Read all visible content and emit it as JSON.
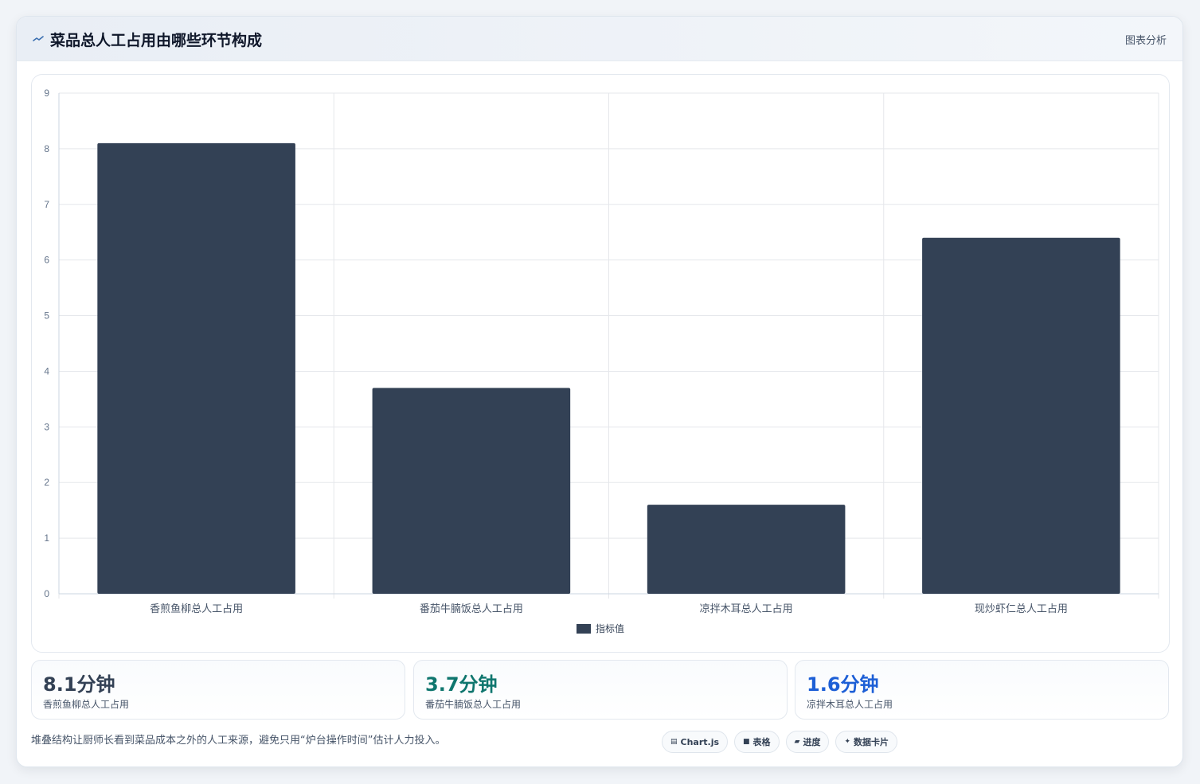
{
  "header": {
    "title": "菜品总人工占用由哪些环节构成",
    "link_label": "图表分析"
  },
  "chart_data": {
    "type": "bar",
    "categories": [
      "香煎鱼柳总人工占用",
      "番茄牛腩饭总人工占用",
      "凉拌木耳总人工占用",
      "现炒虾仁总人工占用"
    ],
    "series": [
      {
        "name": "指标值",
        "values": [
          8.1,
          3.7,
          1.6,
          6.4
        ],
        "color": "#334155"
      }
    ],
    "ylim": [
      0,
      9
    ],
    "yticks": [
      "0",
      "1",
      "2",
      "3",
      "4",
      "5",
      "6",
      "7",
      "8",
      "9"
    ],
    "grid": true,
    "legend_position": "bottom"
  },
  "stats": [
    {
      "value": "8.1分钟",
      "label": "香煎鱼柳总人工占用",
      "color": "#334155"
    },
    {
      "value": "3.7分钟",
      "label": "番茄牛腩饭总人工占用",
      "color": "#0f766e"
    },
    {
      "value": "1.6分钟",
      "label": "凉拌木耳总人工占用",
      "color": "#1d5fd6"
    }
  ],
  "footer": {
    "note": "堆叠结构让厨师长看到菜品成本之外的人工来源，避免只用“炉台操作时间”估计人力投入。",
    "chips": [
      {
        "icon": "chart-icon",
        "glyph": "▤",
        "label": "Chart.js"
      },
      {
        "icon": "table-icon",
        "glyph": "■",
        "label": "表格"
      },
      {
        "icon": "progress-icon",
        "glyph": "▰",
        "label": "进度"
      },
      {
        "icon": "card-icon",
        "glyph": "✦",
        "label": "数据卡片"
      }
    ]
  }
}
